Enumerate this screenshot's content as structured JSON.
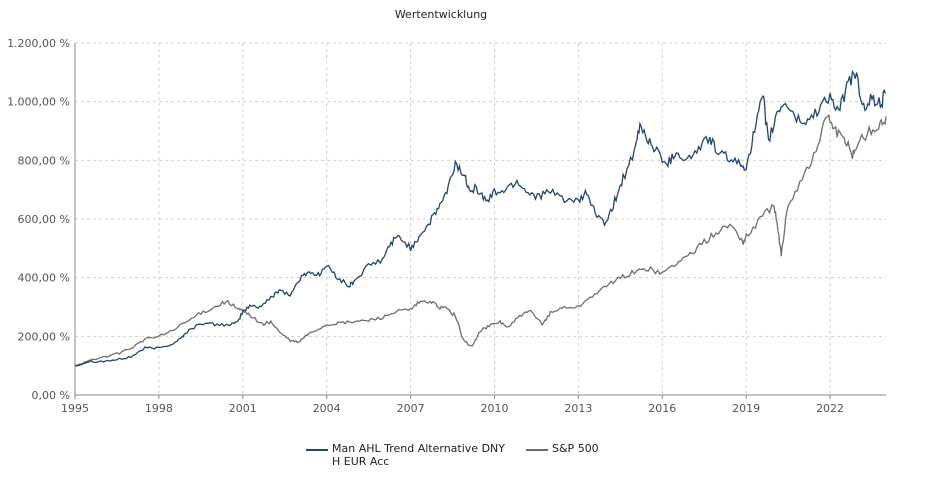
{
  "chart_data": {
    "type": "line",
    "title": "Wertentwicklung",
    "xlabel": "",
    "ylabel": "",
    "xlim": [
      1995.0,
      2024.0
    ],
    "ylim": [
      0,
      1200
    ],
    "y_ticks": [
      0,
      200,
      400,
      600,
      800,
      1000,
      1200
    ],
    "y_tick_labels": [
      "0,00 %",
      "200,00 %",
      "400,00 %",
      "600,00 %",
      "800,00 %",
      "1.000,00 %",
      "1.200,00 %"
    ],
    "x_ticks": [
      1995,
      1998,
      2001,
      2004,
      2007,
      2010,
      2013,
      2016,
      2019,
      2022
    ],
    "x_tick_labels": [
      "1995",
      "1998",
      "2001",
      "2004",
      "2007",
      "2010",
      "2013",
      "2016",
      "2019",
      "2022"
    ],
    "grid": true,
    "legend_position": "bottom",
    "series": [
      {
        "name": "Man AHL Trend Alternative DNY H EUR Acc",
        "color": "#1f4670",
        "x": [
          1995.0,
          1995.5,
          1996.0,
          1996.5,
          1997.0,
          1997.5,
          1998.0,
          1998.5,
          1998.8,
          1999.0,
          1999.5,
          2000.0,
          2000.5,
          2000.8,
          2001.0,
          2001.3,
          2001.6,
          2002.0,
          2002.3,
          2002.7,
          2003.0,
          2003.3,
          2003.7,
          2004.0,
          2004.4,
          2004.8,
          2005.0,
          2005.5,
          2006.0,
          2006.3,
          2006.6,
          2007.0,
          2007.3,
          2007.7,
          2008.0,
          2008.3,
          2008.6,
          2008.9,
          2009.1,
          2009.4,
          2009.7,
          2010.0,
          2010.4,
          2010.8,
          2011.2,
          2011.6,
          2012.0,
          2012.5,
          2013.0,
          2013.3,
          2013.6,
          2014.0,
          2014.3,
          2014.6,
          2015.0,
          2015.2,
          2015.5,
          2015.8,
          2016.2,
          2016.5,
          2016.9,
          2017.3,
          2017.7,
          2018.0,
          2018.4,
          2018.8,
          2019.0,
          2019.3,
          2019.6,
          2019.8,
          2020.1,
          2020.4,
          2020.8,
          2021.2,
          2021.6,
          2022.0,
          2022.3,
          2022.6,
          2022.9,
          2023.2,
          2023.5,
          2023.8,
          2024.0
        ],
        "values": [
          100,
          115,
          115,
          120,
          130,
          160,
          160,
          175,
          195,
          215,
          245,
          240,
          240,
          245,
          285,
          305,
          300,
          330,
          360,
          340,
          390,
          420,
          410,
          440,
          400,
          370,
          390,
          440,
          460,
          520,
          540,
          500,
          540,
          590,
          640,
          690,
          790,
          750,
          710,
          700,
          660,
          690,
          700,
          730,
          690,
          680,
          690,
          670,
          655,
          690,
          620,
          580,
          660,
          740,
          820,
          920,
          870,
          830,
          790,
          830,
          800,
          840,
          880,
          820,
          810,
          780,
          780,
          900,
          1020,
          860,
          960,
          1000,
          940,
          930,
          980,
          1020,
          960,
          1050,
          1100,
          980,
          1010,
          990,
          1030
        ]
      },
      {
        "name": "S&P 500",
        "color": "#6e6e6e",
        "x": [
          1995.0,
          1995.5,
          1996.0,
          1996.5,
          1997.0,
          1997.5,
          1998.0,
          1998.5,
          1999.0,
          1999.5,
          2000.0,
          2000.4,
          2000.8,
          2001.0,
          2001.3,
          2001.7,
          2002.0,
          2002.3,
          2002.7,
          2003.0,
          2003.3,
          2003.7,
          2004.0,
          2004.5,
          2005.0,
          2005.5,
          2006.0,
          2006.5,
          2007.0,
          2007.3,
          2007.7,
          2008.0,
          2008.3,
          2008.6,
          2008.9,
          2009.2,
          2009.5,
          2009.8,
          2010.2,
          2010.5,
          2010.9,
          2011.3,
          2011.7,
          2012.0,
          2012.5,
          2013.0,
          2013.5,
          2014.0,
          2014.5,
          2015.0,
          2015.5,
          2016.0,
          2016.5,
          2017.0,
          2017.5,
          2018.0,
          2018.5,
          2018.9,
          2019.0,
          2019.5,
          2020.0,
          2020.15,
          2020.25,
          2020.5,
          2021.0,
          2021.5,
          2021.9,
          2022.2,
          2022.5,
          2022.8,
          2023.0,
          2023.4,
          2023.8,
          2024.0
        ],
        "values": [
          100,
          115,
          130,
          140,
          160,
          190,
          200,
          220,
          250,
          280,
          300,
          320,
          295,
          285,
          270,
          240,
          250,
          215,
          185,
          180,
          205,
          225,
          240,
          245,
          250,
          255,
          265,
          285,
          290,
          315,
          320,
          300,
          295,
          270,
          185,
          165,
          220,
          235,
          250,
          230,
          270,
          285,
          240,
          280,
          300,
          300,
          340,
          370,
          400,
          420,
          430,
          415,
          450,
          480,
          520,
          560,
          580,
          520,
          540,
          600,
          650,
          550,
          480,
          650,
          740,
          830,
          960,
          900,
          870,
          820,
          860,
          900,
          920,
          950
        ]
      }
    ]
  }
}
